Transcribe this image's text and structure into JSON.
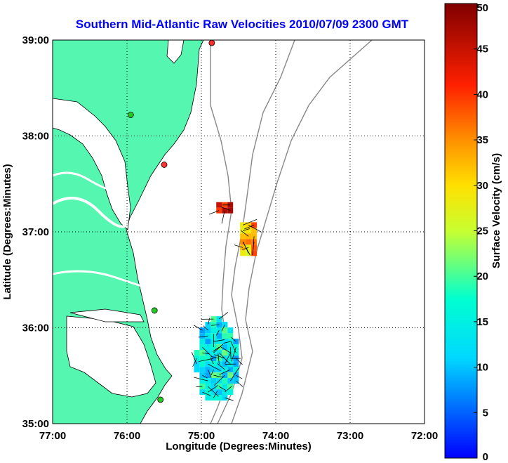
{
  "chart_data": {
    "type": "map",
    "title": "Southern Mid-Atlantic Raw Velocities 2010/07/09 2300 GMT",
    "xlabel": "Longitude (Degrees:Minutes)",
    "ylabel": "Latitude (Degrees:Minutes)",
    "xlim": [
      -77,
      -72
    ],
    "ylim": [
      35,
      39
    ],
    "x_ticks": [
      {
        "value": -77,
        "label": "77:00"
      },
      {
        "value": -76,
        "label": "76:00"
      },
      {
        "value": -75,
        "label": "75:00"
      },
      {
        "value": -74,
        "label": "74:00"
      },
      {
        "value": -73,
        "label": "73:00"
      },
      {
        "value": -72,
        "label": "72:00"
      }
    ],
    "y_ticks": [
      {
        "value": 35,
        "label": "35:00"
      },
      {
        "value": 36,
        "label": "36:00"
      },
      {
        "value": 37,
        "label": "37:00"
      },
      {
        "value": 38,
        "label": "38:00"
      },
      {
        "value": 39,
        "label": "39:00"
      }
    ],
    "grid": true,
    "colorbar": {
      "label": "Surface Velocity (cm/s)",
      "min": 0,
      "max": 50,
      "ticks": [
        "0",
        "5",
        "10",
        "15",
        "20",
        "25",
        "30",
        "35",
        "40",
        "45",
        "50"
      ],
      "placement": "right"
    },
    "land_color": "#55f7b0",
    "sites": [
      {
        "lon": -74.86,
        "lat": 38.97,
        "color": "#ff2a2a"
      },
      {
        "lon": -75.95,
        "lat": 38.22,
        "color": "#22cc22"
      },
      {
        "lon": -75.5,
        "lat": 37.7,
        "color": "#ff3333"
      },
      {
        "lon": -75.63,
        "lat": 36.18,
        "color": "#22cc22"
      },
      {
        "lon": -75.55,
        "lat": 35.25,
        "color": "#22cc22"
      }
    ],
    "velocity_patches": [
      {
        "lon_min": -74.8,
        "lon_max": -74.6,
        "lat_min": 37.23,
        "lat_max": 37.31,
        "speed": 45
      },
      {
        "lon_min": -74.48,
        "lon_max": -74.3,
        "lat_min": 36.78,
        "lat_max": 37.1,
        "speed": 33
      },
      {
        "lon_min": -75.1,
        "lon_max": -74.55,
        "lat_min": 35.25,
        "lat_max": 36.12,
        "speed": 15
      }
    ]
  }
}
